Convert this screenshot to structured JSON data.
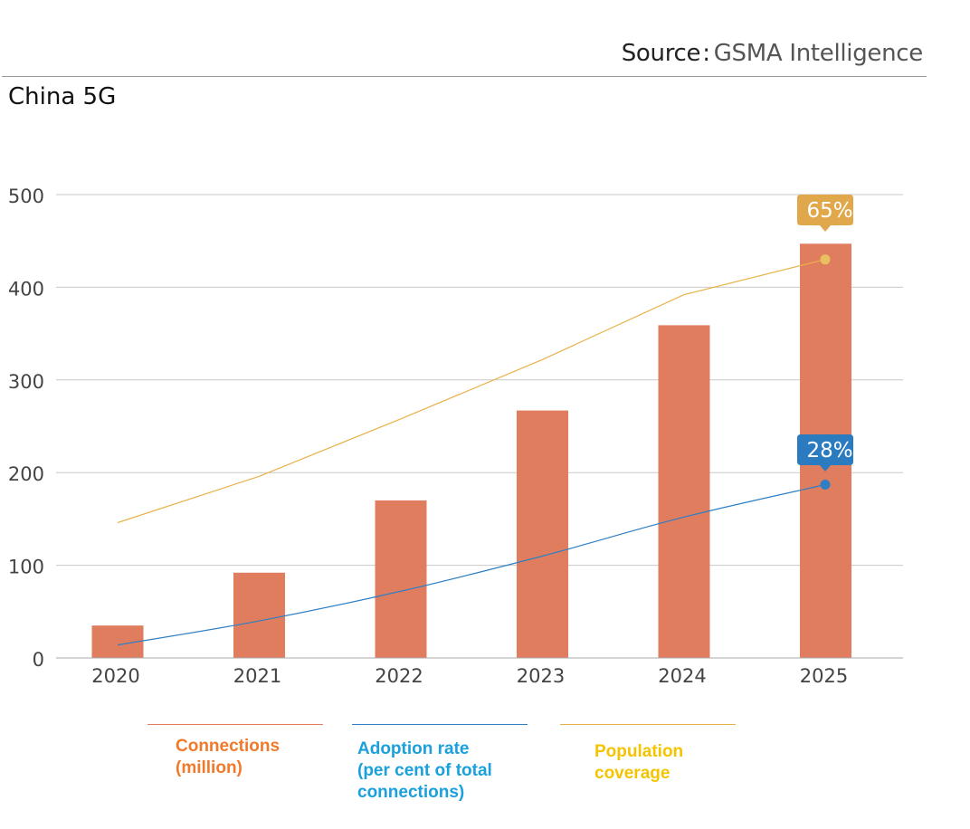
{
  "header": {
    "source_label": "Source",
    "source_separator": ":",
    "source_name": "GSMA Intelligence",
    "title": "China 5G"
  },
  "colors": {
    "connections": "#e07d5f",
    "adoption": "#2e7fc4",
    "population": "#e8b24a",
    "callout_population": "#e0a84b",
    "callout_adoption": "#2a7bc0",
    "legend_connections_text": "#f07a2a",
    "legend_adoption_text": "#1aa0dc",
    "legend_population_text": "#f5c400",
    "grid": "#c9c9c9",
    "axis_text": "#444444"
  },
  "legend": {
    "connections": "Connections\n(million)",
    "adoption": "Adoption rate\n(per cent of total\nconnections)",
    "population": "Population\ncoverage"
  },
  "chart_data": {
    "type": "bar",
    "categories": [
      "2020",
      "2021",
      "2022",
      "2023",
      "2024",
      "2025"
    ],
    "ylim": [
      0,
      500
    ],
    "yticks": [
      0,
      100,
      200,
      300,
      400,
      500
    ],
    "grid": true,
    "series": [
      {
        "name": "Connections (million)",
        "type": "bar",
        "values": [
          35,
          92,
          170,
          267,
          359,
          447
        ]
      },
      {
        "name": "Adoption rate (per cent of total connections)",
        "type": "line",
        "values": [
          14,
          40,
          72,
          110,
          152,
          187
        ],
        "end_label": "28%"
      },
      {
        "name": "Population coverage",
        "type": "line",
        "values": [
          146,
          196,
          258,
          322,
          392,
          430
        ],
        "end_label": "65%"
      }
    ]
  }
}
